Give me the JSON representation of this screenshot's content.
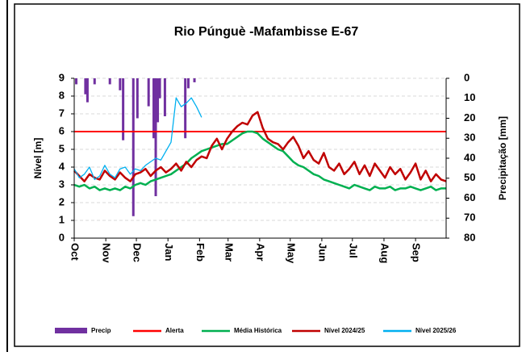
{
  "chart_data": {
    "type": "line",
    "title": "Rio Púnguè -Mafambisse E-67",
    "y_label": "Nível [m]",
    "y2_label": "Precipitação [mm]",
    "xlim": [
      0,
      365
    ],
    "xticks": [
      {
        "value": 0,
        "label": "Oct"
      },
      {
        "value": 31,
        "label": "Nov"
      },
      {
        "value": 61,
        "label": "Dec"
      },
      {
        "value": 92,
        "label": "Jan"
      },
      {
        "value": 123,
        "label": "Feb"
      },
      {
        "value": 151,
        "label": "Mar"
      },
      {
        "value": 182,
        "label": "Apr"
      },
      {
        "value": 212,
        "label": "May"
      },
      {
        "value": 243,
        "label": "Jun"
      },
      {
        "value": 273,
        "label": "Jul"
      },
      {
        "value": 304,
        "label": "Aug"
      },
      {
        "value": 335,
        "label": "Sep"
      }
    ],
    "ylim": [
      0,
      9
    ],
    "yticks": [
      0,
      1,
      2,
      3,
      4,
      5,
      6,
      7,
      8,
      9
    ],
    "y2lim": [
      0,
      80
    ],
    "y2ticks": [
      0,
      10,
      20,
      30,
      40,
      50,
      60,
      70,
      80
    ],
    "y2_inverted": true,
    "grid": true,
    "x": [
      0,
      5,
      10,
      15,
      20,
      25,
      30,
      35,
      40,
      45,
      50,
      55,
      60,
      65,
      70,
      75,
      80,
      85,
      90,
      95,
      100,
      105,
      110,
      115,
      120,
      125,
      130,
      135,
      140,
      145,
      150,
      155,
      160,
      165,
      170,
      175,
      180,
      185,
      190,
      195,
      200,
      205,
      210,
      215,
      220,
      225,
      230,
      235,
      240,
      245,
      250,
      255,
      260,
      265,
      270,
      275,
      280,
      285,
      290,
      295,
      300,
      305,
      310,
      315,
      320,
      325,
      330,
      335,
      340,
      345,
      350,
      355,
      360,
      365
    ],
    "series": [
      {
        "name": "Precip",
        "type": "bar",
        "axis": "y2",
        "color": "#7030a0",
        "x": [
          2,
          11,
          13,
          20,
          35,
          45,
          48,
          58,
          62,
          73,
          78,
          80,
          82,
          84,
          89,
          109,
          112,
          118
        ],
        "values": [
          3,
          8,
          12,
          3,
          3,
          6,
          31,
          69,
          20,
          14,
          30,
          59,
          22,
          10,
          19,
          30,
          5,
          2
        ]
      },
      {
        "name": "Alerta",
        "type": "line",
        "color": "#ff0000",
        "x": [
          0,
          365
        ],
        "values": [
          6,
          6
        ]
      },
      {
        "name": "Média Histórica",
        "type": "line",
        "color": "#00b050",
        "values": [
          3.0,
          2.9,
          3.0,
          2.8,
          2.9,
          2.7,
          2.8,
          2.7,
          2.8,
          2.7,
          2.9,
          2.8,
          3.0,
          3.1,
          3.0,
          3.2,
          3.3,
          3.4,
          3.5,
          3.6,
          3.8,
          4.0,
          4.2,
          4.5,
          4.7,
          4.9,
          5.0,
          5.1,
          5.2,
          5.3,
          5.3,
          5.5,
          5.7,
          5.9,
          6.0,
          6.0,
          5.9,
          5.6,
          5.4,
          5.2,
          5.0,
          4.9,
          4.6,
          4.3,
          4.1,
          4.0,
          3.8,
          3.6,
          3.5,
          3.3,
          3.2,
          3.1,
          3.0,
          2.9,
          2.8,
          3.0,
          2.9,
          2.8,
          2.7,
          2.9,
          2.8,
          2.8,
          2.9,
          2.7,
          2.8,
          2.8,
          2.9,
          2.8,
          2.7,
          2.8,
          2.9,
          2.7,
          2.8,
          2.8
        ]
      },
      {
        "name": "Nível 2024/25",
        "type": "line",
        "color": "#c00000",
        "values": [
          3.8,
          3.5,
          3.2,
          3.6,
          3.4,
          3.3,
          3.8,
          3.5,
          3.3,
          3.7,
          3.4,
          3.2,
          3.6,
          3.7,
          3.9,
          3.5,
          3.8,
          4.0,
          3.7,
          3.9,
          4.2,
          3.8,
          4.3,
          4.0,
          4.4,
          4.6,
          4.5,
          5.2,
          5.6,
          5.0,
          5.6,
          6.0,
          6.3,
          6.5,
          6.4,
          6.9,
          7.1,
          6.2,
          5.6,
          5.4,
          5.3,
          5.0,
          5.4,
          5.7,
          5.2,
          4.5,
          4.9,
          4.4,
          4.2,
          4.8,
          4.0,
          3.8,
          4.2,
          3.6,
          3.9,
          4.3,
          3.6,
          4.1,
          3.5,
          4.2,
          3.8,
          3.4,
          4.0,
          3.6,
          3.9,
          3.3,
          3.7,
          4.2,
          3.3,
          3.8,
          3.2,
          3.6,
          3.3,
          3.2
        ]
      },
      {
        "name": "Nível 2025/26",
        "type": "line",
        "color": "#00b0f0",
        "values": [
          3.9,
          3.4,
          3.6,
          4.0,
          3.3,
          3.5,
          4.1,
          3.6,
          3.4,
          3.9,
          4.0,
          3.6,
          3.9,
          3.8,
          4.1,
          4.3,
          4.5,
          4.4,
          4.9,
          5.4,
          7.9,
          7.4,
          7.6,
          7.9,
          7.4,
          6.8,
          null,
          null,
          null,
          null,
          null,
          null,
          null,
          null,
          null,
          null,
          null,
          null,
          null,
          null,
          null,
          null,
          null,
          null,
          null,
          null,
          null,
          null,
          null,
          null,
          null,
          null,
          null,
          null,
          null,
          null,
          null,
          null,
          null,
          null,
          null,
          null,
          null,
          null,
          null,
          null,
          null,
          null,
          null,
          null,
          null,
          null,
          null,
          null
        ]
      }
    ]
  }
}
